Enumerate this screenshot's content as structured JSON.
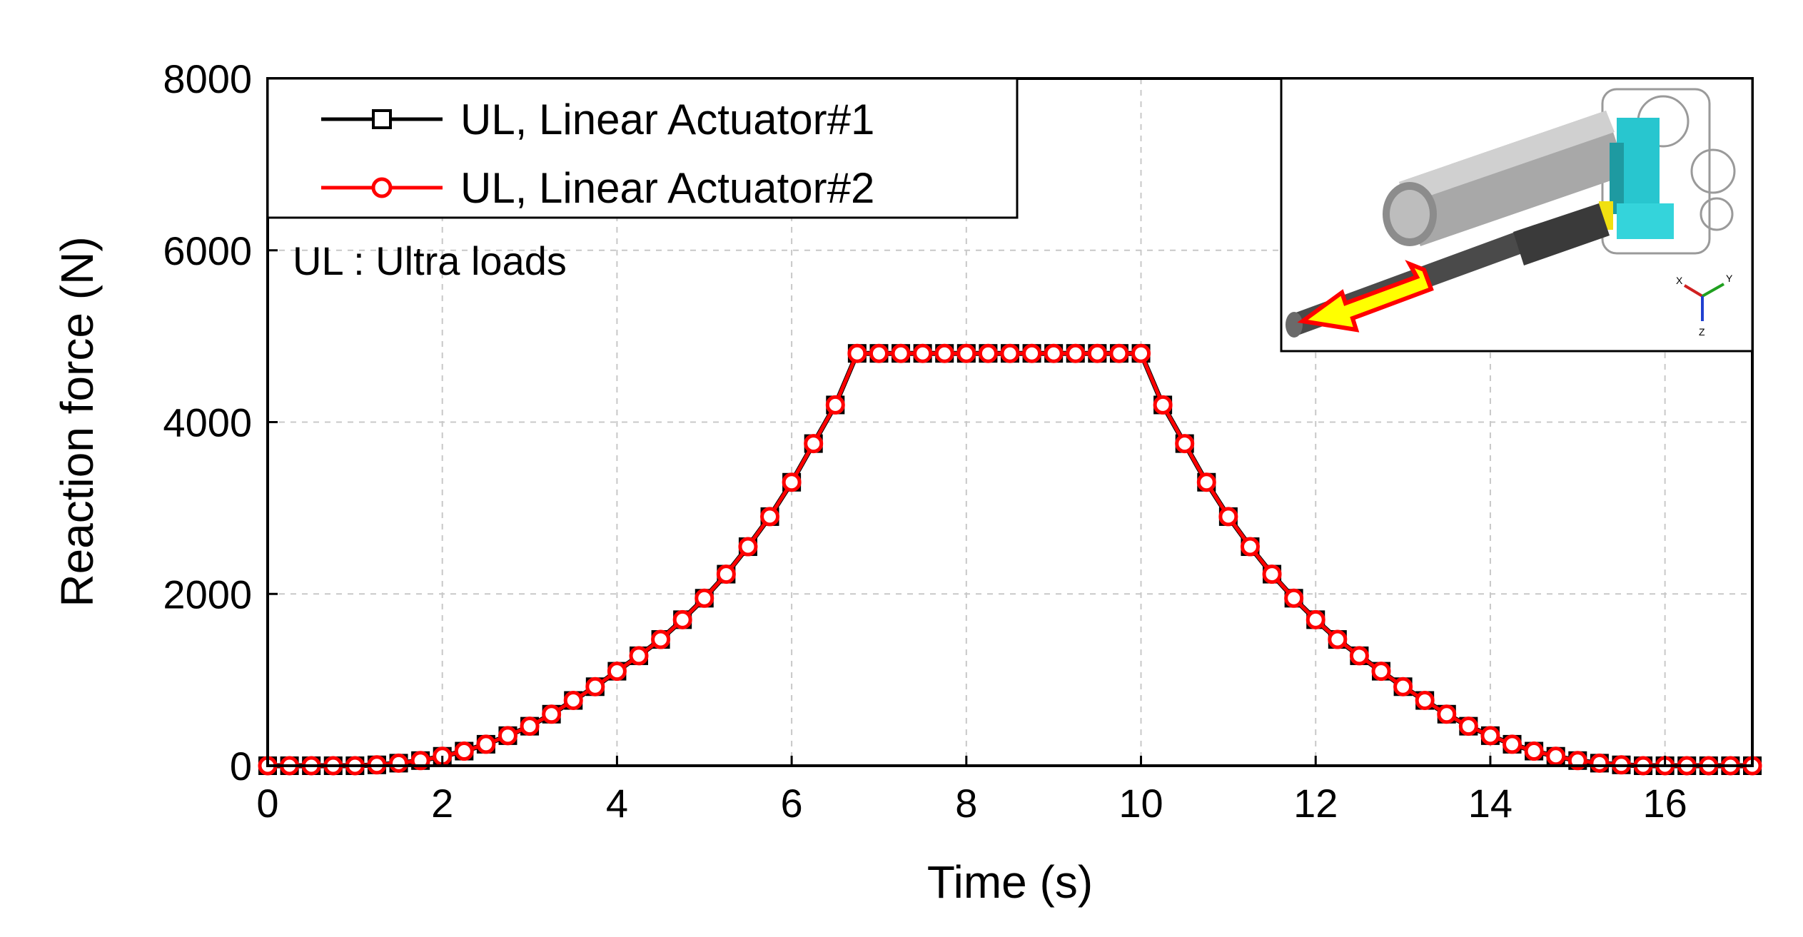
{
  "chart_data": {
    "type": "line",
    "xlabel": "Time (s)",
    "ylabel": "Reaction force (N)",
    "xlim": [
      0,
      17
    ],
    "ylim": [
      0,
      8000
    ],
    "xticks": [
      "0",
      "2",
      "4",
      "6",
      "8",
      "10",
      "12",
      "14",
      "16"
    ],
    "yticks": [
      "0",
      "2000",
      "4000",
      "6000",
      "8000"
    ],
    "grid": true,
    "legend_position": "top-left",
    "annotation": "UL : Ultra loads",
    "series": [
      {
        "name": "UL, Linear Actuator#1",
        "color": "#000000",
        "marker": "square",
        "x": [
          0,
          0.25,
          0.5,
          0.75,
          1,
          1.25,
          1.5,
          1.75,
          2,
          2.25,
          2.5,
          2.75,
          3,
          3.25,
          3.5,
          3.75,
          4,
          4.25,
          4.5,
          4.75,
          5,
          5.25,
          5.5,
          5.75,
          6,
          6.25,
          6.5,
          6.75,
          7,
          7.25,
          7.5,
          7.75,
          8,
          8.25,
          8.5,
          8.75,
          9,
          9.25,
          9.5,
          9.75,
          10,
          10.25,
          10.5,
          10.75,
          11,
          11.25,
          11.5,
          11.75,
          12,
          12.25,
          12.5,
          12.75,
          13,
          13.25,
          13.5,
          13.75,
          14,
          14.25,
          14.5,
          14.75,
          15,
          15.25,
          15.5,
          15.75,
          16,
          16.25,
          16.5,
          16.75,
          17
        ],
        "y": [
          0,
          0,
          0,
          0,
          0,
          10,
          30,
          60,
          110,
          170,
          250,
          350,
          460,
          600,
          760,
          920,
          1100,
          1280,
          1470,
          1700,
          1950,
          2230,
          2550,
          2900,
          3300,
          3750,
          4200,
          4800,
          4800,
          4800,
          4800,
          4800,
          4800,
          4800,
          4800,
          4800,
          4800,
          4800,
          4800,
          4800,
          4800,
          4200,
          3750,
          3300,
          2900,
          2550,
          2230,
          1950,
          1700,
          1470,
          1280,
          1100,
          920,
          760,
          600,
          460,
          350,
          250,
          170,
          110,
          60,
          30,
          10,
          0,
          0,
          0,
          0,
          0,
          0
        ]
      },
      {
        "name": "UL, Linear Actuator#2",
        "color": "#ff0000",
        "marker": "circle",
        "x": [
          0,
          0.25,
          0.5,
          0.75,
          1,
          1.25,
          1.5,
          1.75,
          2,
          2.25,
          2.5,
          2.75,
          3,
          3.25,
          3.5,
          3.75,
          4,
          4.25,
          4.5,
          4.75,
          5,
          5.25,
          5.5,
          5.75,
          6,
          6.25,
          6.5,
          6.75,
          7,
          7.25,
          7.5,
          7.75,
          8,
          8.25,
          8.5,
          8.75,
          9,
          9.25,
          9.5,
          9.75,
          10,
          10.25,
          10.5,
          10.75,
          11,
          11.25,
          11.5,
          11.75,
          12,
          12.25,
          12.5,
          12.75,
          13,
          13.25,
          13.5,
          13.75,
          14,
          14.25,
          14.5,
          14.75,
          15,
          15.25,
          15.5,
          15.75,
          16,
          16.25,
          16.5,
          16.75,
          17
        ],
        "y": [
          0,
          0,
          0,
          0,
          0,
          10,
          30,
          60,
          110,
          170,
          250,
          350,
          460,
          600,
          760,
          920,
          1100,
          1280,
          1470,
          1700,
          1950,
          2230,
          2550,
          2900,
          3300,
          3750,
          4200,
          4800,
          4800,
          4800,
          4800,
          4800,
          4800,
          4800,
          4800,
          4800,
          4800,
          4800,
          4800,
          4800,
          4800,
          4200,
          3750,
          3300,
          2900,
          2550,
          2230,
          1950,
          1700,
          1470,
          1280,
          1100,
          920,
          760,
          600,
          460,
          350,
          250,
          170,
          110,
          60,
          30,
          10,
          0,
          0,
          0,
          0,
          0,
          0
        ]
      }
    ],
    "inset": {
      "description_icon": "linear-actuator-3d-model",
      "axis_labels": [
        "X",
        "Y",
        "Z"
      ]
    }
  }
}
